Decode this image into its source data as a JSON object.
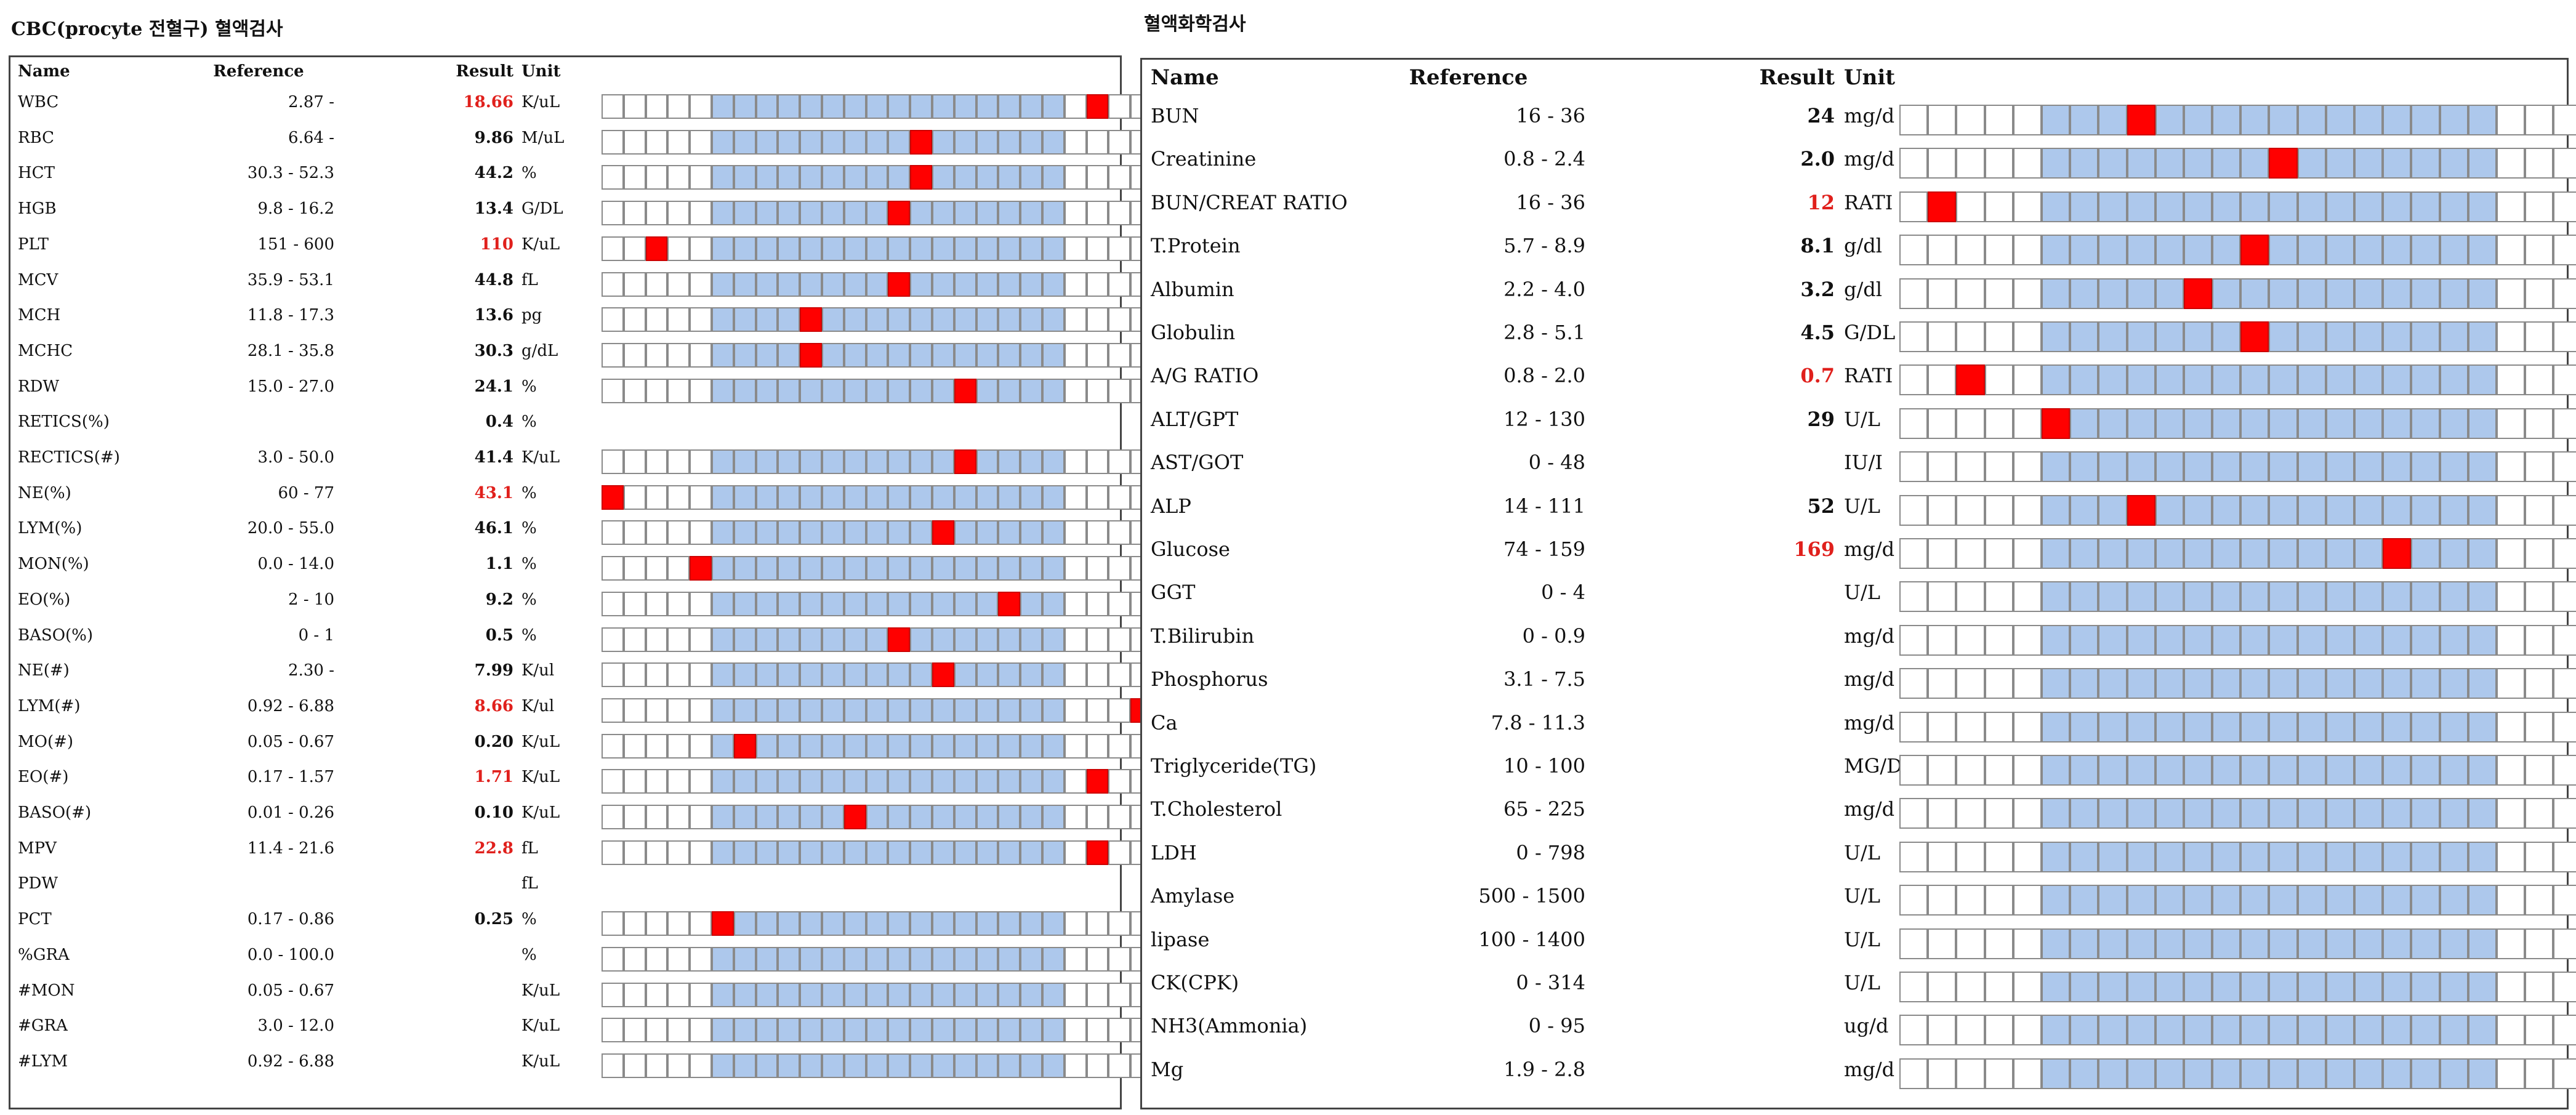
{
  "cbc": {
    "title": "CBC(procyte 전혈구) 혈액검사",
    "headers": {
      "name": "Name",
      "reference": "Reference",
      "result": "Result",
      "unit": "Unit"
    },
    "rows": [
      {
        "name": "WBC",
        "ref": "2.87 -",
        "result": "18.66",
        "unit": "K/uL",
        "abnormal": true,
        "gauge": true,
        "marker": 22
      },
      {
        "name": "RBC",
        "ref": "6.64 -",
        "result": "9.86",
        "unit": "M/uL",
        "abnormal": false,
        "gauge": true,
        "marker": 14
      },
      {
        "name": "HCT",
        "ref": "30.3 - 52.3",
        "result": "44.2",
        "unit": "%",
        "abnormal": false,
        "gauge": true,
        "marker": 14
      },
      {
        "name": "HGB",
        "ref": "9.8 - 16.2",
        "result": "13.4",
        "unit": "G/DL",
        "abnormal": false,
        "gauge": true,
        "marker": 13
      },
      {
        "name": "PLT",
        "ref": "151 - 600",
        "result": "110",
        "unit": "K/uL",
        "abnormal": true,
        "gauge": true,
        "marker": 2
      },
      {
        "name": "MCV",
        "ref": "35.9 - 53.1",
        "result": "44.8",
        "unit": "fL",
        "abnormal": false,
        "gauge": true,
        "marker": 13
      },
      {
        "name": "MCH",
        "ref": "11.8 - 17.3",
        "result": "13.6",
        "unit": "pg",
        "abnormal": false,
        "gauge": true,
        "marker": 9
      },
      {
        "name": "MCHC",
        "ref": "28.1 - 35.8",
        "result": "30.3",
        "unit": "g/dL",
        "abnormal": false,
        "gauge": true,
        "marker": 9
      },
      {
        "name": "RDW",
        "ref": "15.0 - 27.0",
        "result": "24.1",
        "unit": "%",
        "abnormal": false,
        "gauge": true,
        "marker": 16
      },
      {
        "name": "RETICS(%)",
        "ref": "",
        "result": "0.4",
        "unit": "%",
        "abnormal": false,
        "gauge": false,
        "marker": -1
      },
      {
        "name": "RECTICS(#)",
        "ref": "3.0 - 50.0",
        "result": "41.4",
        "unit": "K/uL",
        "abnormal": false,
        "gauge": true,
        "marker": 16
      },
      {
        "name": "NE(%)",
        "ref": "60 - 77",
        "result": "43.1",
        "unit": "%",
        "abnormal": true,
        "gauge": true,
        "marker": 0
      },
      {
        "name": "LYM(%)",
        "ref": "20.0 - 55.0",
        "result": "46.1",
        "unit": "%",
        "abnormal": false,
        "gauge": true,
        "marker": 15
      },
      {
        "name": "MON(%)",
        "ref": "0.0 - 14.0",
        "result": "1.1",
        "unit": "%",
        "abnormal": false,
        "gauge": true,
        "marker": 4
      },
      {
        "name": "EO(%)",
        "ref": "2 - 10",
        "result": "9.2",
        "unit": "%",
        "abnormal": false,
        "gauge": true,
        "marker": 18
      },
      {
        "name": "BASO(%)",
        "ref": "0 - 1",
        "result": "0.5",
        "unit": "%",
        "abnormal": false,
        "gauge": true,
        "marker": 13
      },
      {
        "name": "NE(#)",
        "ref": "2.30 -",
        "result": "7.99",
        "unit": "K/ul",
        "abnormal": false,
        "gauge": true,
        "marker": 15
      },
      {
        "name": "LYM(#)",
        "ref": "0.92 - 6.88",
        "result": "8.66",
        "unit": "K/ul",
        "abnormal": true,
        "gauge": true,
        "marker": 24
      },
      {
        "name": "MO(#)",
        "ref": "0.05 - 0.67",
        "result": "0.20",
        "unit": "K/uL",
        "abnormal": false,
        "gauge": true,
        "marker": 6
      },
      {
        "name": "EO(#)",
        "ref": "0.17 - 1.57",
        "result": "1.71",
        "unit": "K/uL",
        "abnormal": true,
        "gauge": true,
        "marker": 22
      },
      {
        "name": "BASO(#)",
        "ref": "0.01 - 0.26",
        "result": "0.10",
        "unit": "K/uL",
        "abnormal": false,
        "gauge": true,
        "marker": 11
      },
      {
        "name": "MPV",
        "ref": "11.4 - 21.6",
        "result": "22.8",
        "unit": "fL",
        "abnormal": true,
        "gauge": true,
        "marker": 22
      },
      {
        "name": "PDW",
        "ref": "",
        "result": "",
        "unit": "fL",
        "abnormal": false,
        "gauge": false,
        "marker": -1
      },
      {
        "name": "PCT",
        "ref": "0.17 - 0.86",
        "result": "0.25",
        "unit": "%",
        "abnormal": false,
        "gauge": true,
        "marker": 5
      },
      {
        "name": "%GRA",
        "ref": "0.0 - 100.0",
        "result": "",
        "unit": "%",
        "abnormal": false,
        "gauge": true,
        "marker": -1
      },
      {
        "name": "#MON",
        "ref": "0.05 - 0.67",
        "result": "",
        "unit": "K/uL",
        "abnormal": false,
        "gauge": true,
        "marker": -1
      },
      {
        "name": "#GRA",
        "ref": "3.0 - 12.0",
        "result": "",
        "unit": "K/uL",
        "abnormal": false,
        "gauge": true,
        "marker": -1
      },
      {
        "name": "#LYM",
        "ref": "0.92 - 6.88",
        "result": "",
        "unit": "K/uL",
        "abnormal": false,
        "gauge": true,
        "marker": -1
      }
    ]
  },
  "chem": {
    "title": "혈액화학검사",
    "headers": {
      "name": "Name",
      "reference": "Reference",
      "result": "Result",
      "unit": "Unit"
    },
    "rows": [
      {
        "name": "BUN",
        "ref": "16 - 36",
        "result": "24",
        "unit": "mg/d",
        "abnormal": false,
        "gauge": true,
        "marker": 8
      },
      {
        "name": "Creatinine",
        "ref": "0.8 - 2.4",
        "result": "2.0",
        "unit": "mg/d",
        "abnormal": false,
        "gauge": true,
        "marker": 13
      },
      {
        "name": "BUN/CREAT RATIO",
        "ref": "16 - 36",
        "result": "12",
        "unit": "RATI",
        "abnormal": true,
        "gauge": true,
        "marker": 1
      },
      {
        "name": "T.Protein",
        "ref": "5.7 - 8.9",
        "result": "8.1",
        "unit": "g/dl",
        "abnormal": false,
        "gauge": true,
        "marker": 12
      },
      {
        "name": "Albumin",
        "ref": "2.2 - 4.0",
        "result": "3.2",
        "unit": "g/dl",
        "abnormal": false,
        "gauge": true,
        "marker": 10
      },
      {
        "name": "Globulin",
        "ref": "2.8 - 5.1",
        "result": "4.5",
        "unit": "G/DL",
        "abnormal": false,
        "gauge": true,
        "marker": 12
      },
      {
        "name": "A/G RATIO",
        "ref": "0.8 - 2.0",
        "result": "0.7",
        "unit": "RATI",
        "abnormal": true,
        "gauge": true,
        "marker": 2
      },
      {
        "name": "ALT/GPT",
        "ref": "12 - 130",
        "result": "29",
        "unit": "U/L",
        "abnormal": false,
        "gauge": true,
        "marker": 5
      },
      {
        "name": "AST/GOT",
        "ref": "0 - 48",
        "result": "",
        "unit": "IU/I",
        "abnormal": false,
        "gauge": true,
        "marker": -1
      },
      {
        "name": "ALP",
        "ref": "14 - 111",
        "result": "52",
        "unit": "U/L",
        "abnormal": false,
        "gauge": true,
        "marker": 8
      },
      {
        "name": "Glucose",
        "ref": "74 - 159",
        "result": "169",
        "unit": "mg/d",
        "abnormal": true,
        "gauge": true,
        "marker": 17
      },
      {
        "name": "GGT",
        "ref": "0 - 4",
        "result": "",
        "unit": "U/L",
        "abnormal": false,
        "gauge": true,
        "marker": -1
      },
      {
        "name": "T.Bilirubin",
        "ref": "0 - 0.9",
        "result": "",
        "unit": "mg/d",
        "abnormal": false,
        "gauge": true,
        "marker": -1
      },
      {
        "name": "Phosphorus",
        "ref": "3.1 - 7.5",
        "result": "",
        "unit": "mg/d",
        "abnormal": false,
        "gauge": true,
        "marker": -1
      },
      {
        "name": "Ca",
        "ref": "7.8 - 11.3",
        "result": "",
        "unit": "mg/d",
        "abnormal": false,
        "gauge": true,
        "marker": -1
      },
      {
        "name": "Triglyceride(TG)",
        "ref": "10 - 100",
        "result": "",
        "unit": "MG/D",
        "abnormal": false,
        "gauge": true,
        "marker": -1
      },
      {
        "name": "T.Cholesterol",
        "ref": "65 - 225",
        "result": "",
        "unit": "mg/d",
        "abnormal": false,
        "gauge": true,
        "marker": -1
      },
      {
        "name": "LDH",
        "ref": "0 - 798",
        "result": "",
        "unit": "U/L",
        "abnormal": false,
        "gauge": true,
        "marker": -1
      },
      {
        "name": "Amylase",
        "ref": "500 - 1500",
        "result": "",
        "unit": "U/L",
        "abnormal": false,
        "gauge": true,
        "marker": -1
      },
      {
        "name": "lipase",
        "ref": "100 - 1400",
        "result": "",
        "unit": "U/L",
        "abnormal": false,
        "gauge": true,
        "marker": -1
      },
      {
        "name": "CK(CPK)",
        "ref": "0 - 314",
        "result": "",
        "unit": "U/L",
        "abnormal": false,
        "gauge": true,
        "marker": -1
      },
      {
        "name": "NH3(Ammonia)",
        "ref": "0 - 95",
        "result": "",
        "unit": "ug/d",
        "abnormal": false,
        "gauge": true,
        "marker": -1
      },
      {
        "name": "Mg",
        "ref": "1.9 - 2.8",
        "result": "",
        "unit": "mg/d",
        "abnormal": false,
        "gauge": true,
        "marker": -1
      }
    ]
  }
}
